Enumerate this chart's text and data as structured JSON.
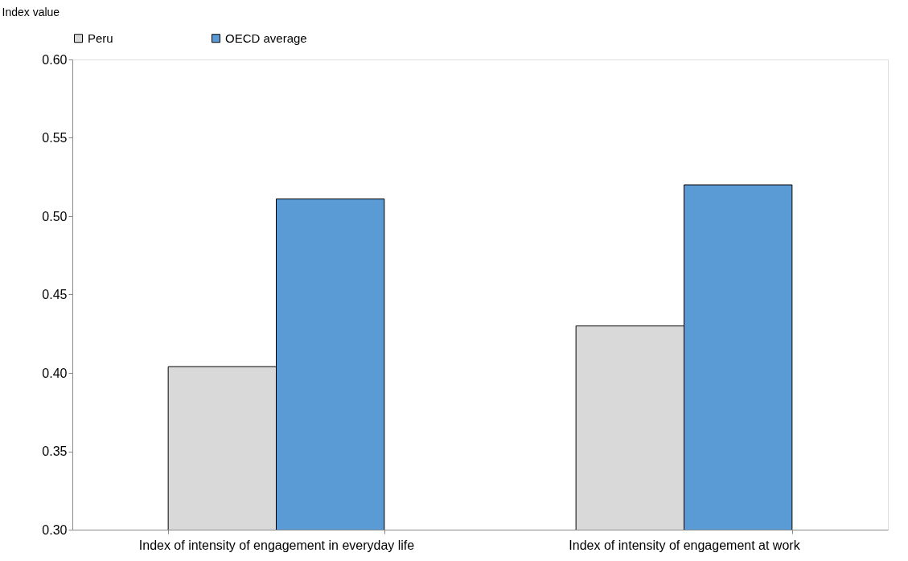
{
  "chart_data": {
    "type": "bar",
    "ylabel": "Index value",
    "categories": [
      "Index of intensity of engagement in everyday life",
      "Index of intensity of engagement at work"
    ],
    "series": [
      {
        "name": "Peru",
        "color": "#d9d9d9",
        "values": [
          0.404,
          0.43
        ]
      },
      {
        "name": "OECD average",
        "color": "#5b9bd5",
        "values": [
          0.511,
          0.52
        ]
      }
    ],
    "ylim": [
      0.3,
      0.6
    ],
    "yticks": [
      {
        "value": 0.3,
        "label": "0.30"
      },
      0.35,
      {
        "value": 0.4,
        "label": "0.40"
      },
      0.45,
      {
        "value": 0.5,
        "label": "0.50"
      },
      0.55,
      {
        "value": 0.6,
        "label": "0.60"
      }
    ],
    "grid": false,
    "legend": "top"
  }
}
